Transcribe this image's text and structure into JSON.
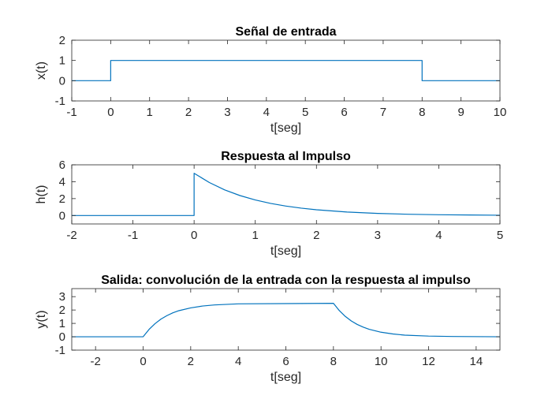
{
  "chart_data": [
    {
      "type": "line",
      "title": "Señal de entrada",
      "xlabel": "t[seg]",
      "ylabel": "x(t)",
      "xlim": [
        -1,
        10
      ],
      "ylim": [
        -1,
        2
      ],
      "xticks": [
        -1,
        0,
        1,
        2,
        3,
        4,
        5,
        6,
        7,
        8,
        9,
        10
      ],
      "yticks": [
        -1,
        0,
        1,
        2
      ],
      "color": "#0072bd",
      "series": [
        {
          "x": [
            -1,
            0,
            0,
            8,
            8,
            10
          ],
          "y": [
            0,
            0,
            1,
            1,
            0,
            0
          ]
        }
      ]
    },
    {
      "type": "line",
      "title": "Respuesta al Impulso",
      "xlabel": "t[seg]",
      "ylabel": "h(t)",
      "xlim": [
        -2,
        5
      ],
      "ylim": [
        -1,
        6
      ],
      "xticks": [
        -2,
        -1,
        0,
        1,
        2,
        3,
        4,
        5
      ],
      "yticks": [
        0,
        2,
        4,
        6
      ],
      "color": "#0072bd",
      "series": [
        {
          "x": [
            -2,
            0,
            0,
            0.25,
            0.5,
            0.75,
            1.0,
            1.25,
            1.5,
            1.75,
            2.0,
            2.5,
            3.0,
            3.5,
            4.0,
            4.5,
            5.0
          ],
          "y": [
            0,
            0,
            5,
            3.9,
            3.03,
            2.36,
            1.84,
            1.43,
            1.12,
            0.87,
            0.68,
            0.41,
            0.25,
            0.15,
            0.09,
            0.06,
            0.03
          ]
        }
      ]
    },
    {
      "type": "line",
      "title": "Salida: convolución de la entrada con la respuesta al impulso",
      "xlabel": "t[seg]",
      "ylabel": "y(t)",
      "xlim": [
        -3,
        15
      ],
      "ylim": [
        -1,
        3.6
      ],
      "xticks": [
        -2,
        0,
        2,
        4,
        6,
        8,
        10,
        12,
        14
      ],
      "yticks": [
        -1,
        0,
        1,
        2,
        3
      ],
      "color": "#0072bd",
      "series": [
        {
          "x": [
            -3,
            0,
            0.25,
            0.5,
            0.75,
            1.0,
            1.25,
            1.5,
            2.0,
            2.5,
            3.0,
            4.0,
            8.0,
            8.25,
            8.5,
            8.75,
            9.0,
            9.25,
            9.5,
            10.0,
            10.5,
            11.0,
            12.0,
            13.0,
            15.0
          ],
          "y": [
            0,
            0,
            0.55,
            0.98,
            1.32,
            1.58,
            1.79,
            1.95,
            2.16,
            2.3,
            2.38,
            2.46,
            2.5,
            1.95,
            1.52,
            1.18,
            0.92,
            0.72,
            0.56,
            0.34,
            0.21,
            0.12,
            0.05,
            0.02,
            0
          ]
        }
      ]
    }
  ]
}
